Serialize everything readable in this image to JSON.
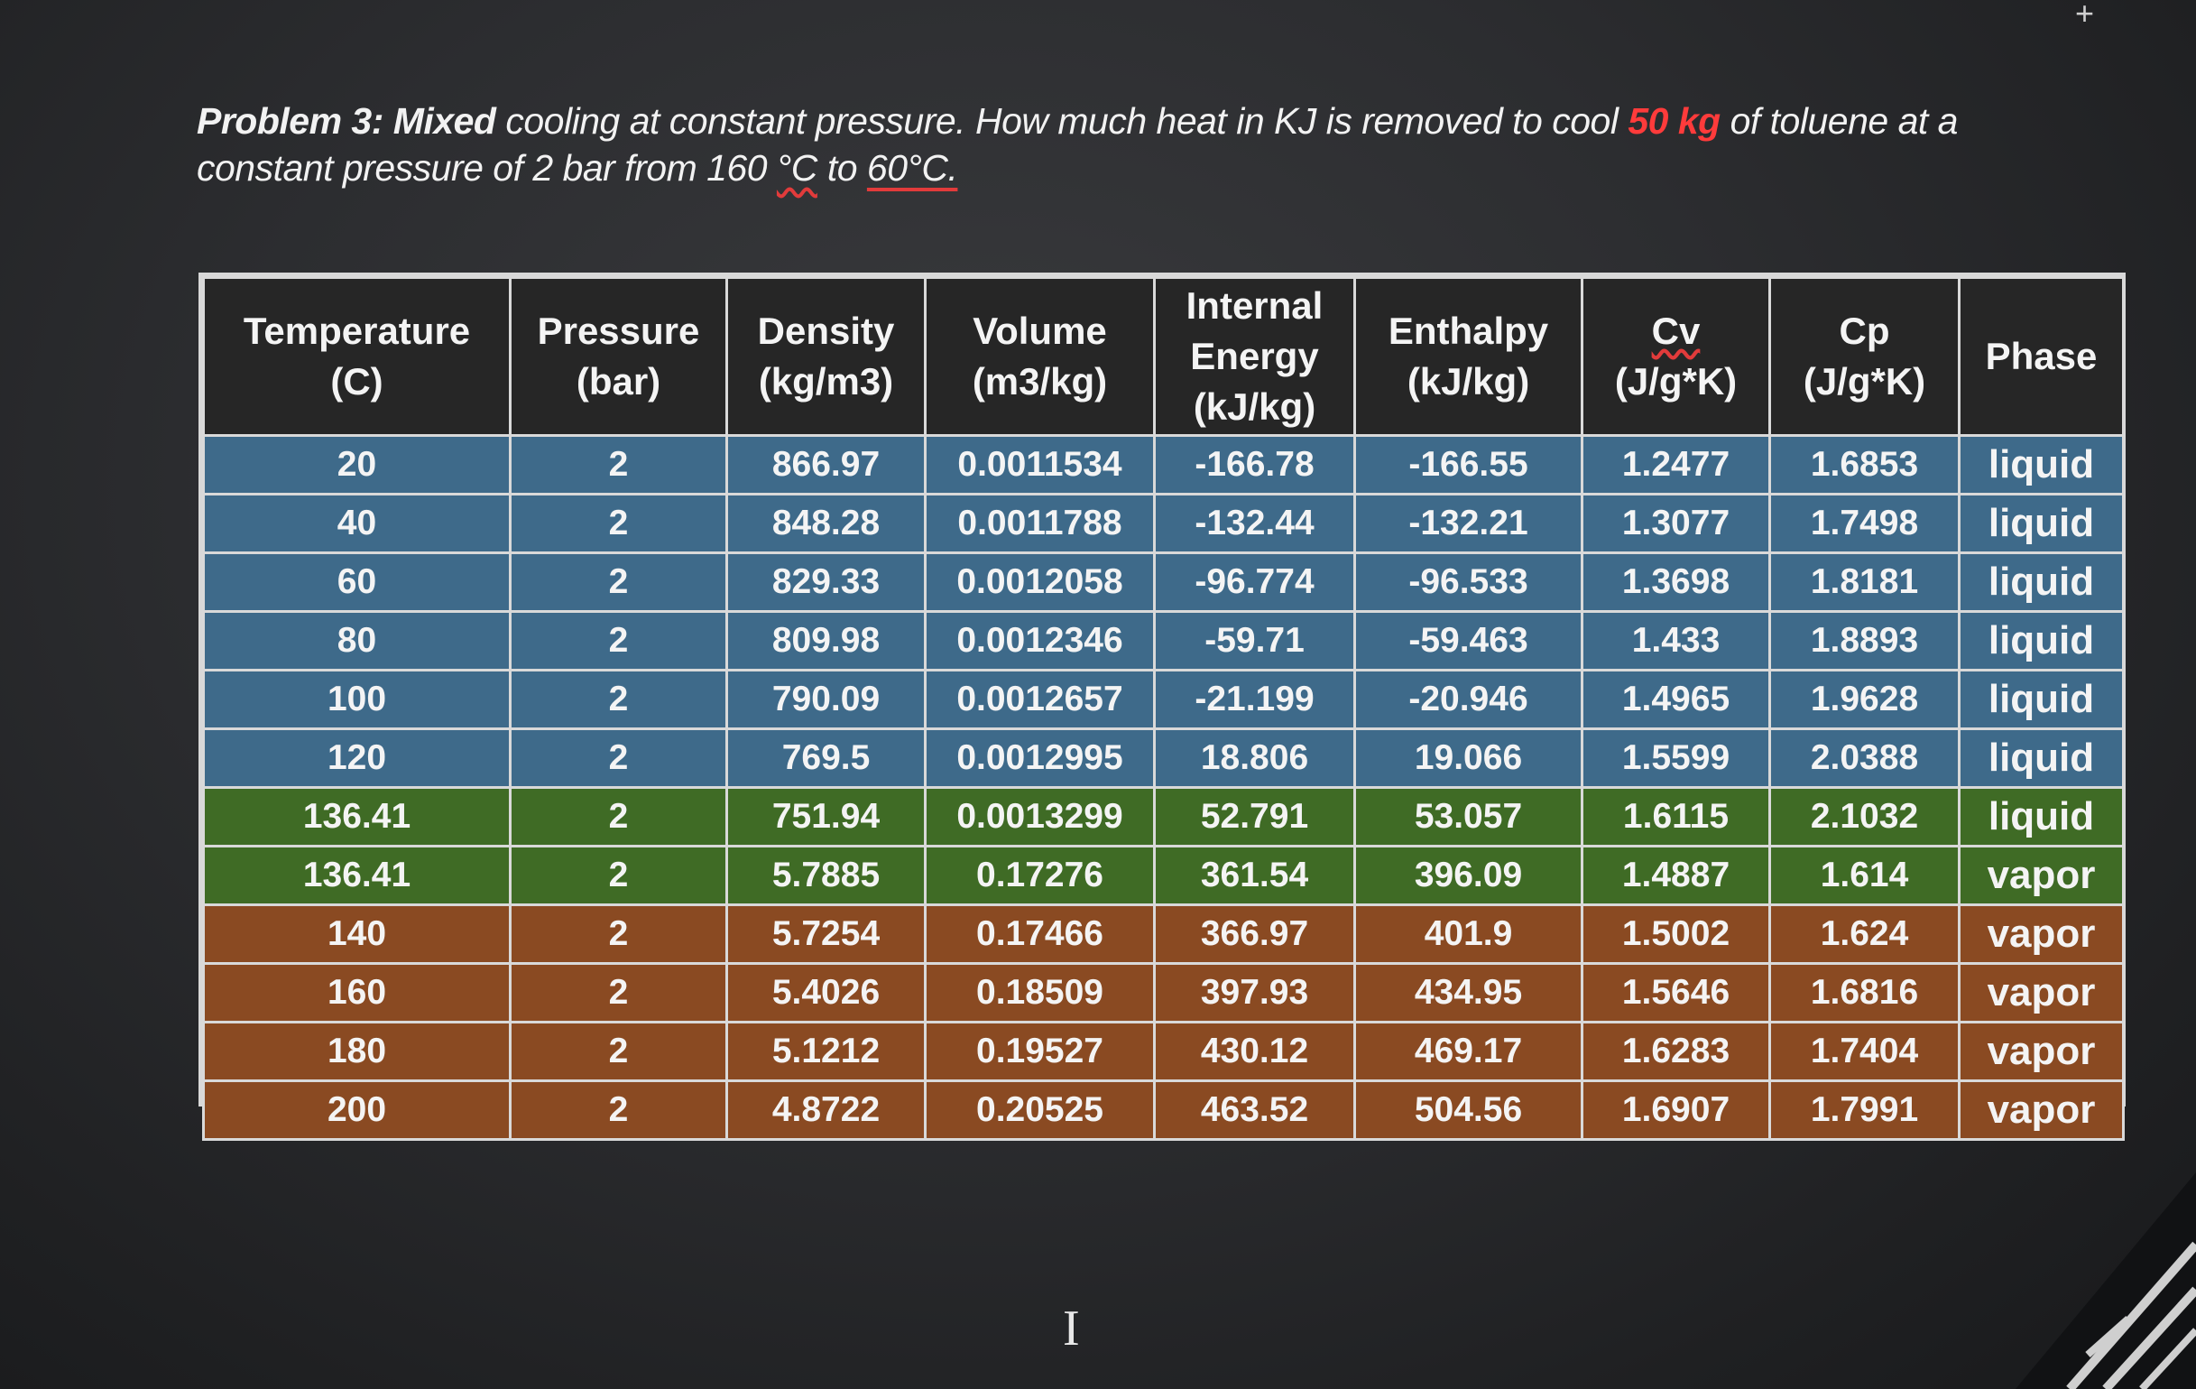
{
  "problem": {
    "lead": "Problem 3: Mixed",
    "part1": " cooling at constant pressure. How much heat in KJ is removed to cool ",
    "mass": "50 kg",
    "part2": " of toluene at a constant pressure of 2 bar from 160 ",
    "unit1": "°C",
    "part3": " to ",
    "temp2": "60°C."
  },
  "table": {
    "headers": [
      [
        "Temperature",
        "(C)"
      ],
      [
        "Pressure",
        "(bar)"
      ],
      [
        "Density",
        "(kg/m3)"
      ],
      [
        "Volume",
        "(m3/kg)"
      ],
      [
        "Internal",
        "Energy",
        "(kJ/kg)"
      ],
      [
        "Enthalpy",
        "(kJ/kg)"
      ],
      [
        "Cv",
        "(J/g*K)"
      ],
      [
        "Cp",
        "(J/g*K)"
      ],
      [
        "Phase"
      ]
    ],
    "rows": [
      [
        "20",
        "2",
        "866.97",
        "0.0011534",
        "-166.78",
        "-166.55",
        "1.2477",
        "1.6853",
        "liquid"
      ],
      [
        "40",
        "2",
        "848.28",
        "0.0011788",
        "-132.44",
        "-132.21",
        "1.3077",
        "1.7498",
        "liquid"
      ],
      [
        "60",
        "2",
        "829.33",
        "0.0012058",
        "-96.774",
        "-96.533",
        "1.3698",
        "1.8181",
        "liquid"
      ],
      [
        "80",
        "2",
        "809.98",
        "0.0012346",
        "-59.71",
        "-59.463",
        "1.433",
        "1.8893",
        "liquid"
      ],
      [
        "100",
        "2",
        "790.09",
        "0.0012657",
        "-21.199",
        "-20.946",
        "1.4965",
        "1.9628",
        "liquid"
      ],
      [
        "120",
        "2",
        "769.5",
        "0.0012995",
        "18.806",
        "19.066",
        "1.5599",
        "2.0388",
        "liquid"
      ],
      [
        "136.41",
        "2",
        "751.94",
        "0.0013299",
        "52.791",
        "53.057",
        "1.6115",
        "2.1032",
        "liquid"
      ],
      [
        "136.41",
        "2",
        "5.7885",
        "0.17276",
        "361.54",
        "396.09",
        "1.4887",
        "1.614",
        "vapor"
      ],
      [
        "140",
        "2",
        "5.7254",
        "0.17466",
        "366.97",
        "401.9",
        "1.5002",
        "1.624",
        "vapor"
      ],
      [
        "160",
        "2",
        "5.4026",
        "0.18509",
        "397.93",
        "434.95",
        "1.5646",
        "1.6816",
        "vapor"
      ],
      [
        "180",
        "2",
        "5.1212",
        "0.19527",
        "430.12",
        "469.17",
        "1.6283",
        "1.7404",
        "vapor"
      ],
      [
        "200",
        "2",
        "4.8722",
        "0.20525",
        "463.52",
        "504.56",
        "1.6907",
        "1.7991",
        "vapor"
      ]
    ],
    "row_groups": [
      "liquid",
      "liquid",
      "liquid",
      "liquid",
      "liquid",
      "liquid",
      "sat",
      "sat",
      "vapor",
      "vapor",
      "vapor",
      "vapor"
    ]
  },
  "colors": {
    "liquid_row": "#3e6a8a",
    "saturated_row": "#3f6b25",
    "vapor_row": "#8a4a22",
    "header_bg": "#262626",
    "highlight_red": "#ff3b3b"
  },
  "icons": {
    "cursor": "text-cursor-icon"
  },
  "misc": {
    "cursor_glyph": "I",
    "corner_glyph": "+"
  }
}
